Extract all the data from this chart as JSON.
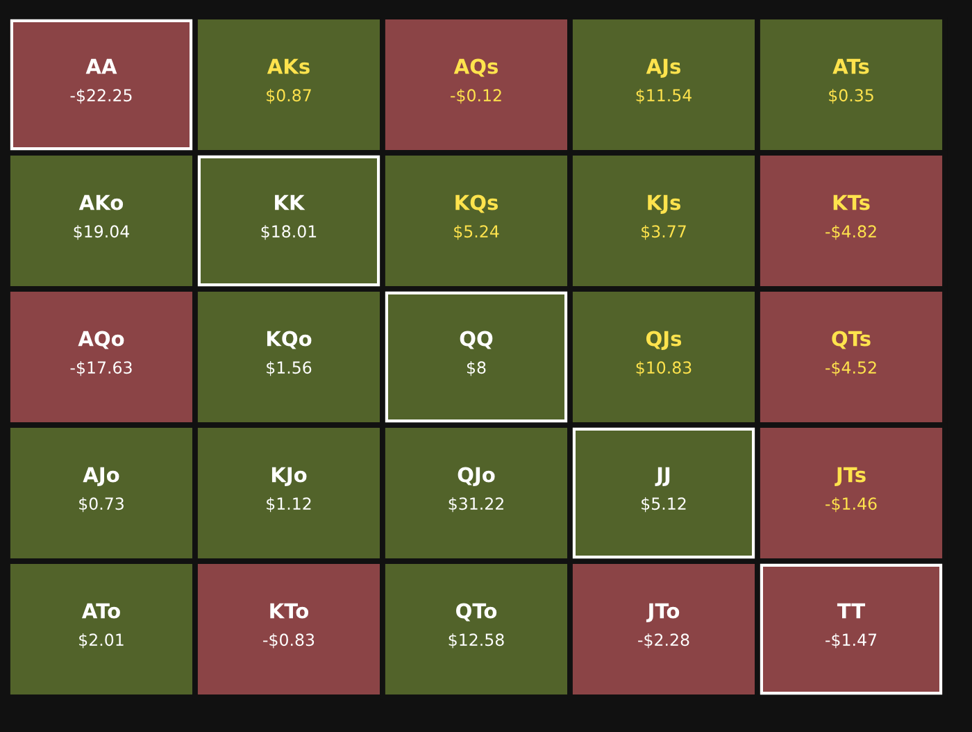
{
  "chart_data": {
    "type": "heatmap",
    "categories": [
      null,
      null,
      null,
      null,
      null
    ],
    "y_categories": [
      null,
      null,
      null,
      null,
      null
    ],
    "cells": [
      [
        -22.25,
        0.87,
        -0.12,
        11.54,
        0.35
      ],
      [
        19.04,
        18.01,
        5.24,
        3.77,
        -4.82
      ],
      [
        -17.63,
        1.56,
        8,
        10.83,
        -4.52
      ],
      [
        0.73,
        1.12,
        31.22,
        5.12,
        -1.46
      ],
      [
        2.01,
        -0.83,
        12.58,
        -2.28,
        -1.47
      ]
    ],
    "cell_labels": [
      [
        "-$22.25",
        "$0.87",
        "-$0.12",
        "$11.54",
        "$0.35"
      ],
      [
        "$19.04",
        "$18.01",
        "$5.24",
        "$3.77",
        "-$4.82"
      ],
      [
        "-$17.63",
        "$1.56",
        "$8",
        "$10.83",
        "-$4.52"
      ],
      [
        "$0.73",
        "$1.12",
        "$31.22",
        "$5.12",
        "-$1.46"
      ],
      [
        "$2.01",
        "-$0.83",
        "$12.58",
        "-$2.28",
        "-$1.47"
      ]
    ],
    "annotations": [
      "AA",
      "AKs",
      "AQs",
      "AJs",
      "ATs",
      "AKo",
      "KK",
      "KQs",
      "KJs",
      "KTs",
      "AQo",
      "KQo",
      "QQ",
      "QJs",
      "QTs",
      "AJo",
      "KJo",
      "QJo",
      "JJ",
      "JTs",
      "ATo",
      "KTo",
      "QTo",
      "JTo",
      "TT"
    ],
    "colors": [
      "#8b4446",
      "#52632a"
    ]
  }
}
